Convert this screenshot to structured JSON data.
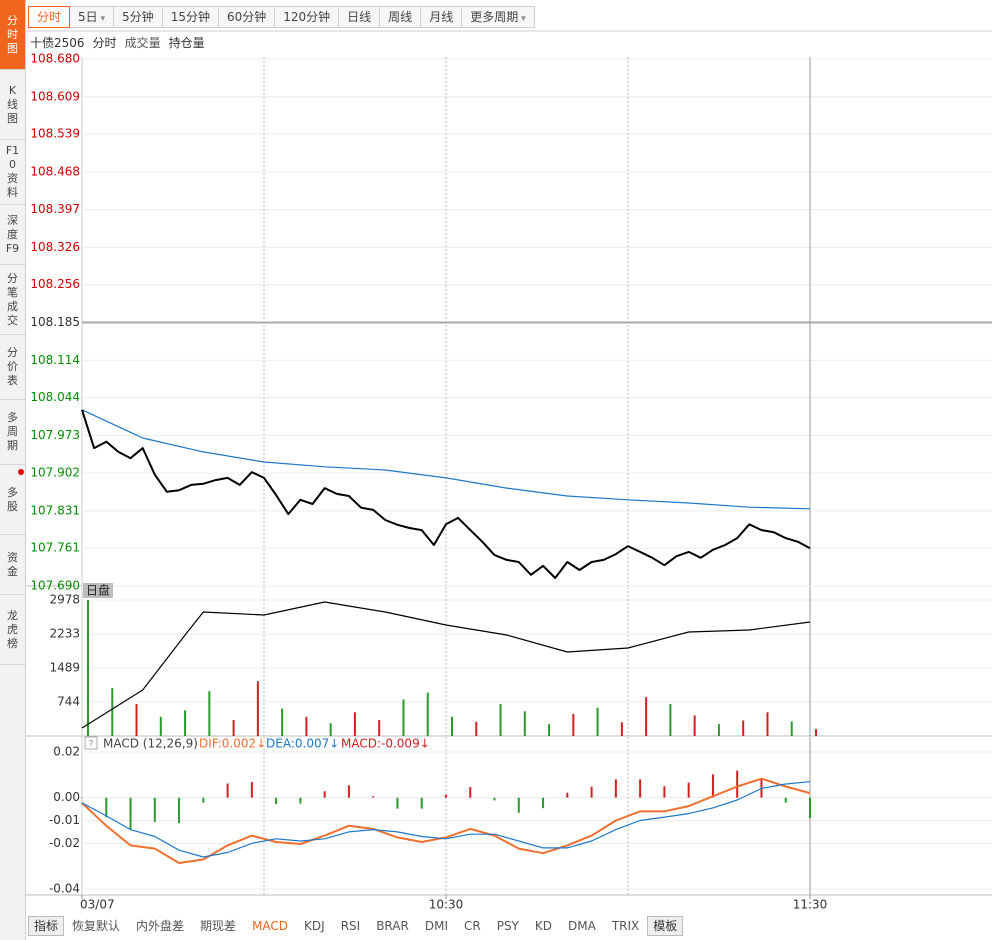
{
  "sidebar": [
    "分时图",
    "K线图",
    "F10资料",
    "深度F9",
    "分笔成交",
    "分价表",
    "多周期",
    "多股",
    "资金",
    "龙虎榜"
  ],
  "period_tabs": [
    "分时",
    "5日",
    "5分钟",
    "15分钟",
    "60分钟",
    "120分钟",
    "日线",
    "周线",
    "月线",
    "更多周期"
  ],
  "header": {
    "symbol": "十债2506",
    "items": [
      "分时",
      "成交量",
      "持仓量"
    ]
  },
  "chart_data": [
    {
      "type": "line",
      "xlim": [
        0,
        120
      ],
      "xgrid": [
        30,
        60,
        90,
        120
      ],
      "ylim": [
        107.69,
        108.68
      ],
      "yticks": [
        {
          "value": 108.68,
          "label": "108.680"
        },
        {
          "value": 108.609,
          "label": "108.609"
        },
        {
          "value": 108.539,
          "label": "108.539"
        },
        {
          "value": 108.468,
          "label": "108.468"
        },
        {
          "value": 108.397,
          "label": "108.397"
        },
        {
          "value": 108.326,
          "label": "108.326"
        },
        {
          "value": 108.256,
          "label": "108.256"
        },
        {
          "value": 108.185,
          "label": "108.185"
        },
        {
          "value": 108.114,
          "label": "108.114"
        },
        {
          "value": 108.044,
          "label": "108.044"
        },
        {
          "value": 107.973,
          "label": "107.973"
        },
        {
          "value": 107.902,
          "label": "107.902"
        },
        {
          "value": 107.831,
          "label": "107.831"
        },
        {
          "value": 107.761,
          "label": "107.761"
        },
        {
          "value": 107.69,
          "label": "107.690"
        }
      ],
      "series": [
        {
          "type": "line",
          "color": "#1e78c8",
          "x": [
            0,
            10,
            20,
            30,
            40,
            50,
            60,
            70,
            80,
            90,
            100,
            110,
            120
          ],
          "values": [
            108.021,
            107.968,
            107.942,
            107.923,
            107.914,
            107.908,
            107.893,
            107.874,
            107.859,
            107.852,
            107.846,
            107.838,
            107.835
          ]
        },
        {
          "type": "line",
          "color": "#000000",
          "x": [
            0,
            2,
            4,
            6,
            8,
            10,
            12,
            14,
            16,
            18,
            20,
            22,
            24,
            26,
            28,
            30,
            32,
            34,
            36,
            38,
            40,
            42,
            44,
            46,
            48,
            50,
            52,
            54,
            56,
            58,
            60,
            62,
            64,
            66,
            68,
            70,
            72,
            74,
            76,
            78,
            80,
            82,
            84,
            86,
            88,
            90,
            92,
            94,
            96,
            98,
            100,
            102,
            104,
            106,
            108,
            110,
            112,
            114,
            116,
            118,
            120
          ],
          "values": [
            108.021,
            107.949,
            107.961,
            107.942,
            107.93,
            107.949,
            107.899,
            107.867,
            107.87,
            107.88,
            107.882,
            107.889,
            107.893,
            107.88,
            107.904,
            107.893,
            107.861,
            107.825,
            107.852,
            107.844,
            107.874,
            107.863,
            107.859,
            107.837,
            107.833,
            107.814,
            107.805,
            107.799,
            107.795,
            107.767,
            107.806,
            107.818,
            107.795,
            107.773,
            107.748,
            107.739,
            107.735,
            107.711,
            107.728,
            107.705,
            107.735,
            107.72,
            107.735,
            107.739,
            107.75,
            107.765,
            107.754,
            107.743,
            107.729,
            107.746,
            107.754,
            107.743,
            107.758,
            107.767,
            107.78,
            107.806,
            107.795,
            107.791,
            107.78,
            107.773,
            107.761
          ]
        }
      ]
    },
    {
      "type": "bar",
      "label": "日盘",
      "xlim": [
        0,
        120
      ],
      "ylim": [
        0,
        2978
      ],
      "yticks": [
        2978,
        2233,
        1489,
        744
      ],
      "series": [
        {
          "type": "bar",
          "x": [
            0,
            4,
            8,
            12,
            16,
            20,
            24,
            28,
            32,
            36,
            40,
            44,
            48,
            52,
            56,
            60,
            64,
            68,
            72,
            76,
            80,
            84,
            88,
            92,
            96,
            100,
            104,
            108,
            112,
            116,
            120
          ],
          "values": [
            2978,
            1050,
            700,
            420,
            560,
            980,
            350,
            1200,
            600,
            420,
            280,
            520,
            350,
            800,
            950,
            420,
            310,
            700,
            540,
            260,
            480,
            620,
            300,
            850,
            700,
            450,
            260,
            340,
            520,
            320,
            150
          ],
          "colors": [
            "#2a9a2a",
            "#2a9a2a",
            "#d02020",
            "#2a9a2a",
            "#2a9a2a",
            "#2a9a2a",
            "#d02020",
            "#d02020",
            "#2a9a2a",
            "#d02020",
            "#2a9a2a",
            "#d02020",
            "#d02020",
            "#2a9a2a",
            "#2a9a2a",
            "#2a9a2a",
            "#d02020",
            "#2a9a2a",
            "#2a9a2a",
            "#2a9a2a",
            "#d02020",
            "#2a9a2a",
            "#d02020",
            "#d02020",
            "#2a9a2a",
            "#d02020",
            "#2a9a2a",
            "#d02020",
            "#d02020",
            "#2a9a2a",
            "#d02020"
          ]
        },
        {
          "type": "line",
          "color": "#000000",
          "x": [
            0,
            10,
            17,
            20,
            30,
            40,
            50,
            60,
            70,
            80,
            90,
            100,
            110,
            120
          ],
          "values": [
            175,
            1007,
            2212,
            2716,
            2650,
            2935,
            2716,
            2431,
            2212,
            1840,
            1927,
            2278,
            2321,
            2497
          ]
        }
      ]
    },
    {
      "type": "macd",
      "title": "MACD (12,26,9)",
      "xlim": [
        0,
        120
      ],
      "xticks": [
        {
          "value": 0,
          "label": "03/07"
        },
        {
          "value": 60,
          "label": "10:30"
        },
        {
          "value": 120,
          "label": "11:30"
        }
      ],
      "ylim": [
        -0.04,
        0.02
      ],
      "yticks": [
        0.02,
        {
          "value": 0,
          "label": "0.00"
        },
        -0.01,
        -0.02,
        -0.04
      ],
      "series": [
        {
          "type": "bar",
          "name": "MACD:-0.009↓",
          "color": "#d02020",
          "negative_color": "#2a9a2a",
          "x": [
            0,
            4,
            8,
            12,
            16,
            20,
            24,
            28,
            32,
            36,
            40,
            44,
            48,
            52,
            56,
            60,
            64,
            68,
            72,
            76,
            80,
            84,
            88,
            92,
            96,
            100,
            104,
            108,
            112,
            116,
            120
          ],
          "values": [
            0,
            -0.0086,
            -0.0138,
            -0.0106,
            -0.0112,
            -0.0022,
            0.0062,
            0.0068,
            -0.0028,
            -0.0026,
            0.0028,
            0.0054,
            0.0006,
            -0.0048,
            -0.0048,
            0.0012,
            0.0046,
            -0.0012,
            -0.0066,
            -0.0046,
            0.0022,
            0.0048,
            0.008,
            0.008,
            0.005,
            0.0066,
            0.0102,
            0.0118,
            0.0086,
            -0.0022,
            -0.009
          ]
        },
        {
          "type": "line",
          "name": "DIF:0.002↓",
          "color": "#f07030",
          "x": [
            0,
            4,
            8,
            12,
            16,
            20,
            24,
            28,
            32,
            36,
            40,
            44,
            48,
            52,
            56,
            60,
            64,
            68,
            72,
            76,
            80,
            84,
            88,
            92,
            96,
            100,
            104,
            108,
            112,
            116,
            120
          ],
          "values": [
            -0.0023,
            -0.0123,
            -0.0209,
            -0.0223,
            -0.0286,
            -0.0271,
            -0.0209,
            -0.0166,
            -0.0194,
            -0.0203,
            -0.0166,
            -0.0123,
            -0.0137,
            -0.0174,
            -0.0194,
            -0.0174,
            -0.0137,
            -0.0166,
            -0.0223,
            -0.0243,
            -0.0209,
            -0.0166,
            -0.01,
            -0.006,
            -0.006,
            -0.0037,
            0.0006,
            0.0049,
            0.0083,
            0.0049,
            0.002
          ]
        },
        {
          "type": "line",
          "name": "DEA:0.007↓",
          "color": "#1e78c8",
          "x": [
            0,
            4,
            8,
            12,
            16,
            20,
            24,
            28,
            32,
            36,
            40,
            44,
            48,
            52,
            56,
            60,
            64,
            68,
            72,
            76,
            80,
            84,
            88,
            92,
            96,
            100,
            104,
            108,
            112,
            116,
            120
          ],
          "values": [
            -0.0023,
            -0.008,
            -0.014,
            -0.017,
            -0.023,
            -0.026,
            -0.024,
            -0.02,
            -0.018,
            -0.019,
            -0.018,
            -0.015,
            -0.014,
            -0.015,
            -0.017,
            -0.018,
            -0.016,
            -0.016,
            -0.019,
            -0.022,
            -0.022,
            -0.019,
            -0.014,
            -0.01,
            -0.0085,
            -0.007,
            -0.0045,
            -0.001,
            0.004,
            0.006,
            0.007
          ]
        }
      ]
    }
  ],
  "bottom_tabs": [
    "指标",
    "恢复默认",
    "内外盘差",
    "期现差",
    "MACD",
    "KDJ",
    "RSI",
    "BRAR",
    "DMI",
    "CR",
    "PSY",
    "KD",
    "DMA",
    "TRIX",
    "模板"
  ]
}
